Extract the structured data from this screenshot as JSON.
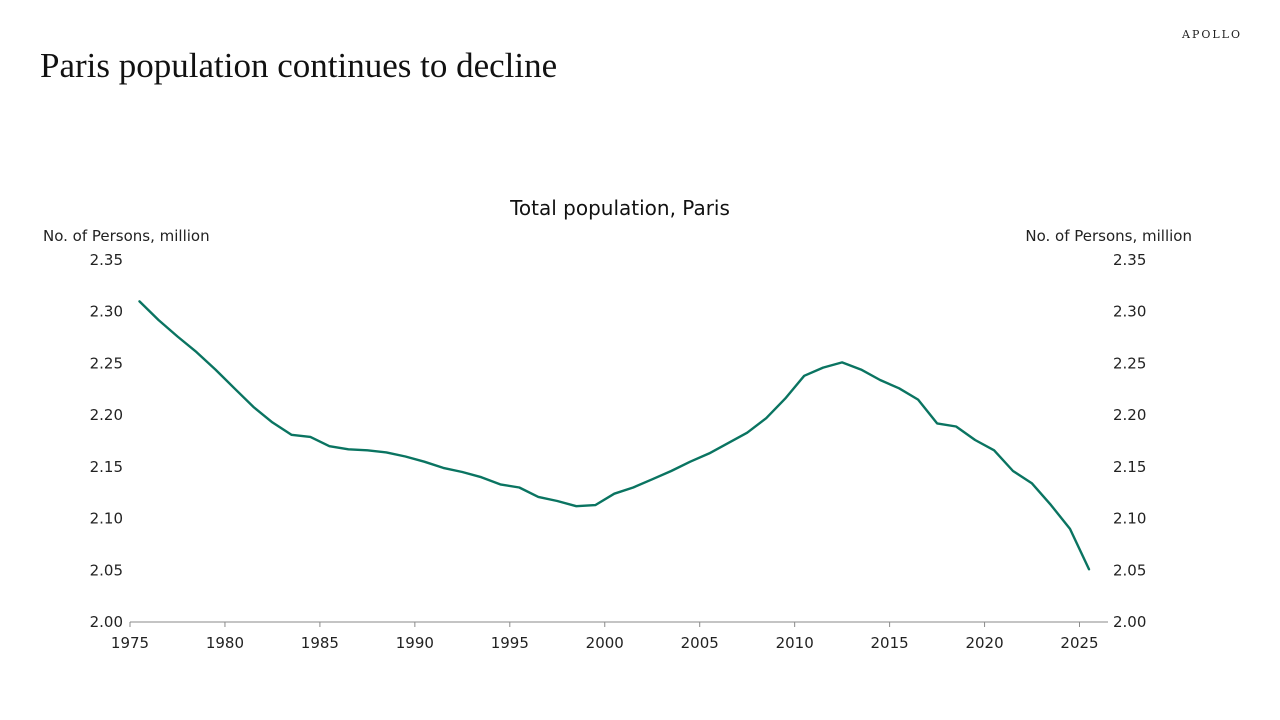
{
  "brand": "APOLLO",
  "slide_title": "Paris population continues to decline",
  "chart_data": {
    "type": "line",
    "title": "Total population, Paris",
    "ylabel_left": "No. of Persons, million",
    "ylabel_right": "No. of Persons, million",
    "xlim": [
      1975,
      2026.5
    ],
    "ylim": [
      2.0,
      2.35
    ],
    "x_ticks": [
      1975,
      1980,
      1985,
      1990,
      1995,
      2000,
      2005,
      2010,
      2015,
      2020,
      2025
    ],
    "y_ticks": [
      2.0,
      2.05,
      2.1,
      2.15,
      2.2,
      2.25,
      2.3,
      2.35
    ],
    "y_tick_labels": [
      "2.00",
      "2.05",
      "2.10",
      "2.15",
      "2.20",
      "2.25",
      "2.30",
      "2.35"
    ],
    "grid": false,
    "line_color": "#0a7461",
    "series": [
      {
        "x": [
          1975.5,
          1976.5,
          1977.5,
          1978.5,
          1979.5,
          1980.5,
          1981.5,
          1982.5,
          1983.5,
          1984.5,
          1985.5,
          1986.5,
          1987.5,
          1988.5,
          1989.5,
          1990.5,
          1991.5,
          1992.5,
          1993.5,
          1994.5,
          1995.5,
          1996.5,
          1997.5,
          1998.5,
          1999.5,
          2000.5,
          2001.5,
          2002.5,
          2003.5,
          2004.5,
          2005.5,
          2006.5,
          2007.5,
          2008.5,
          2009.5,
          2010.5,
          2011.5,
          2012.5,
          2013.5,
          2014.5,
          2015.5,
          2016.5,
          2017.5,
          2018.5,
          2019.5,
          2020.5,
          2021.5,
          2022.5,
          2023.5,
          2024.5,
          2025.5
        ],
        "y": [
          2.31,
          2.292,
          2.276,
          2.261,
          2.244,
          2.226,
          2.208,
          2.193,
          2.181,
          2.179,
          2.17,
          2.167,
          2.166,
          2.164,
          2.16,
          2.155,
          2.149,
          2.145,
          2.14,
          2.133,
          2.13,
          2.121,
          2.117,
          2.112,
          2.113,
          2.124,
          2.13,
          2.138,
          2.146,
          2.155,
          2.163,
          2.173,
          2.183,
          2.197,
          2.216,
          2.238,
          2.246,
          2.251,
          2.244,
          2.234,
          2.226,
          2.215,
          2.192,
          2.189,
          2.176,
          2.166,
          2.146,
          2.134,
          2.113,
          2.09,
          2.051
        ]
      }
    ]
  }
}
